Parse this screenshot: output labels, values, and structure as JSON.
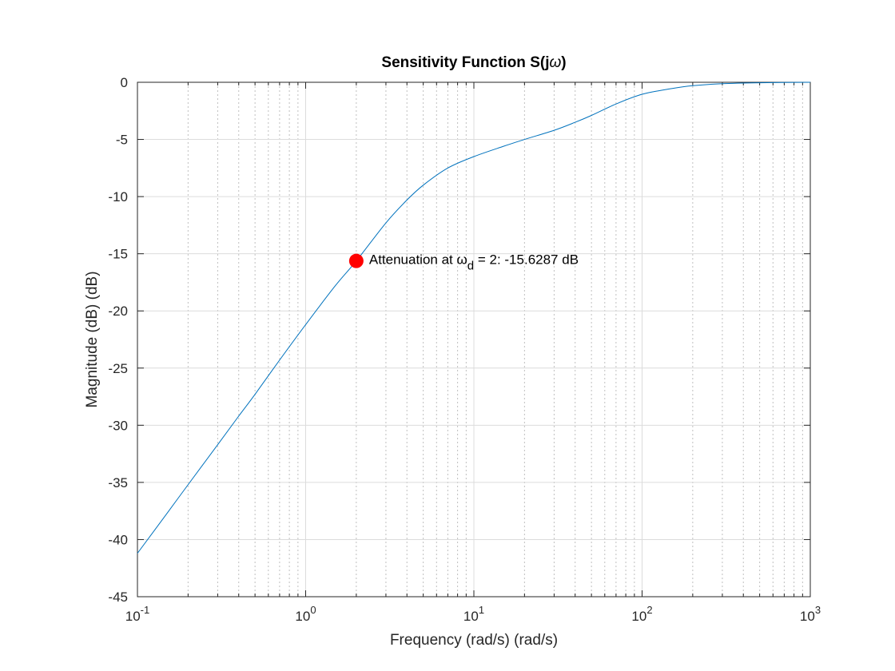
{
  "chart_data": {
    "type": "line",
    "title_parts": {
      "prefix": "Sensitivity Function S(j",
      "symbol": "ω",
      "suffix": ")"
    },
    "title": "Sensitivity Function S(jω)",
    "xlabel": "Frequency (rad/s)  (rad/s)",
    "ylabel": "Magnitude (dB) (dB)",
    "xscale": "log",
    "xlim": [
      0.1,
      1000
    ],
    "ylim": [
      -45,
      0
    ],
    "grid": true,
    "minor_grid_x": true,
    "x_ticks": [
      {
        "value": 0.1,
        "base": "10",
        "exp": "-1"
      },
      {
        "value": 1,
        "base": "10",
        "exp": "0"
      },
      {
        "value": 10,
        "base": "10",
        "exp": "1"
      },
      {
        "value": 100,
        "base": "10",
        "exp": "2"
      },
      {
        "value": 1000,
        "base": "10",
        "exp": "3"
      }
    ],
    "y_ticks": [
      0,
      -5,
      -10,
      -15,
      -20,
      -25,
      -30,
      -35,
      -40,
      -45
    ],
    "y_tick_labels": [
      "0",
      "-5",
      "-10",
      "-15",
      "-20",
      "-25",
      "-30",
      "-35",
      "-40",
      "-45"
    ],
    "series": [
      {
        "color": "#0072BD",
        "x": [
          0.1,
          0.15,
          0.2,
          0.3,
          0.4,
          0.5,
          0.7,
          1,
          1.5,
          2,
          3,
          4,
          5,
          7,
          10,
          15,
          20,
          30,
          40,
          50,
          70,
          100,
          150,
          200,
          300,
          500,
          1000
        ],
        "y": [
          -41.2,
          -37.7,
          -35.2,
          -31.7,
          -29.2,
          -27.3,
          -24.3,
          -21.2,
          -17.8,
          -15.63,
          -12.3,
          -10.3,
          -9.0,
          -7.5,
          -6.5,
          -5.6,
          -5.0,
          -4.2,
          -3.5,
          -2.9,
          -1.9,
          -1.05,
          -0.55,
          -0.3,
          -0.12,
          -0.04,
          0
        ]
      }
    ],
    "marker": {
      "x": 2,
      "y": -15.6287,
      "color": "#FF0000"
    },
    "annotation": {
      "prefix": "Attenuation at ",
      "symbol": "ω",
      "subscript": "d",
      "suffix": " = 2: -15.6287 dB"
    }
  }
}
